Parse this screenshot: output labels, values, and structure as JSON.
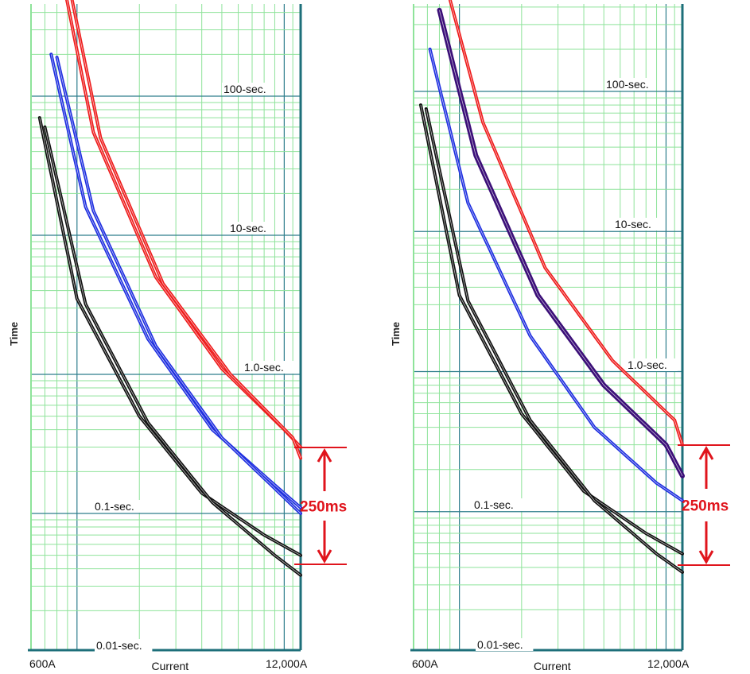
{
  "colors": {
    "minor_grid": "#8ee39a",
    "major_grid": "#2e7d8c",
    "axis": "#1d6f7a",
    "black": "#111111",
    "blue": "#1f2fe0",
    "purple": "#3b0f78",
    "red": "#ee1c1c",
    "annotation": "#e0141c"
  },
  "chart_data": [
    {
      "type": "line",
      "title": "",
      "xlabel": "Current",
      "ylabel": "Time",
      "x_scale": "log",
      "y_scale": "log",
      "xlim": [
        600,
        12000
      ],
      "ylim": [
        0.004,
        600
      ],
      "x_tick_labels": [
        "600A",
        "12,000A"
      ],
      "y_level_labels": [
        "100-sec.",
        "10-sec.",
        "1.0-sec.",
        "0.1-sec.",
        "0.01-sec."
      ],
      "annotation": "250ms",
      "series": [
        {
          "color": "black",
          "x": [
            660,
            1000,
            2000,
            4000,
            8000,
            12000
          ],
          "y": [
            70,
            3.5,
            0.5,
            0.14,
            0.07,
            0.05
          ]
        },
        {
          "color": "black",
          "x": [
            700,
            1100,
            2200,
            4500,
            9000,
            12000
          ],
          "y": [
            60,
            3.2,
            0.45,
            0.12,
            0.05,
            0.036
          ]
        },
        {
          "color": "blue",
          "x": [
            750,
            1100,
            2200,
            4500,
            9000,
            12000
          ],
          "y": [
            200,
            16,
            1.8,
            0.4,
            0.16,
            0.11
          ]
        },
        {
          "color": "blue",
          "x": [
            800,
            1200,
            2400,
            5000,
            10000,
            12000
          ],
          "y": [
            190,
            15,
            1.6,
            0.35,
            0.13,
            0.1
          ]
        },
        {
          "color": "red",
          "x": [
            880,
            1200,
            2400,
            5000,
            10000,
            12000
          ],
          "y": [
            550,
            55,
            5,
            1.1,
            0.4,
            0.3
          ]
        },
        {
          "color": "red",
          "x": [
            930,
            1300,
            2600,
            5500,
            11000,
            12000
          ],
          "y": [
            560,
            50,
            4.5,
            1.0,
            0.35,
            0.25
          ]
        }
      ]
    },
    {
      "type": "line",
      "title": "",
      "xlabel": "Current",
      "ylabel": "Time",
      "x_scale": "log",
      "y_scale": "log",
      "xlim": [
        600,
        12000
      ],
      "ylim": [
        0.004,
        600
      ],
      "x_tick_labels": [
        "600A",
        "12,000A"
      ],
      "y_level_labels": [
        "100-sec.",
        "10-sec.",
        "1.0-sec.",
        "0.1-sec.",
        "0.01-sec."
      ],
      "annotation": "250ms",
      "series": [
        {
          "color": "black",
          "x": [
            650,
            1000,
            2000,
            4000,
            8000,
            12000
          ],
          "y": [
            80,
            3.5,
            0.5,
            0.14,
            0.07,
            0.05
          ]
        },
        {
          "color": "black",
          "x": [
            690,
            1100,
            2200,
            4500,
            9000,
            12000
          ],
          "y": [
            75,
            3.2,
            0.45,
            0.12,
            0.05,
            0.037
          ]
        },
        {
          "color": "blue",
          "x": [
            720,
            1100,
            2200,
            4500,
            9000,
            12000
          ],
          "y": [
            200,
            16,
            1.8,
            0.4,
            0.16,
            0.12
          ]
        },
        {
          "color": "purple",
          "x": [
            800,
            1200,
            2400,
            5000,
            10000,
            12000
          ],
          "y": [
            380,
            35,
            3.5,
            0.8,
            0.3,
            0.18
          ]
        },
        {
          "color": "red",
          "x": [
            850,
            1300,
            2600,
            5500,
            11000,
            12000
          ],
          "y": [
            620,
            60,
            5.5,
            1.2,
            0.45,
            0.3
          ]
        }
      ]
    }
  ]
}
